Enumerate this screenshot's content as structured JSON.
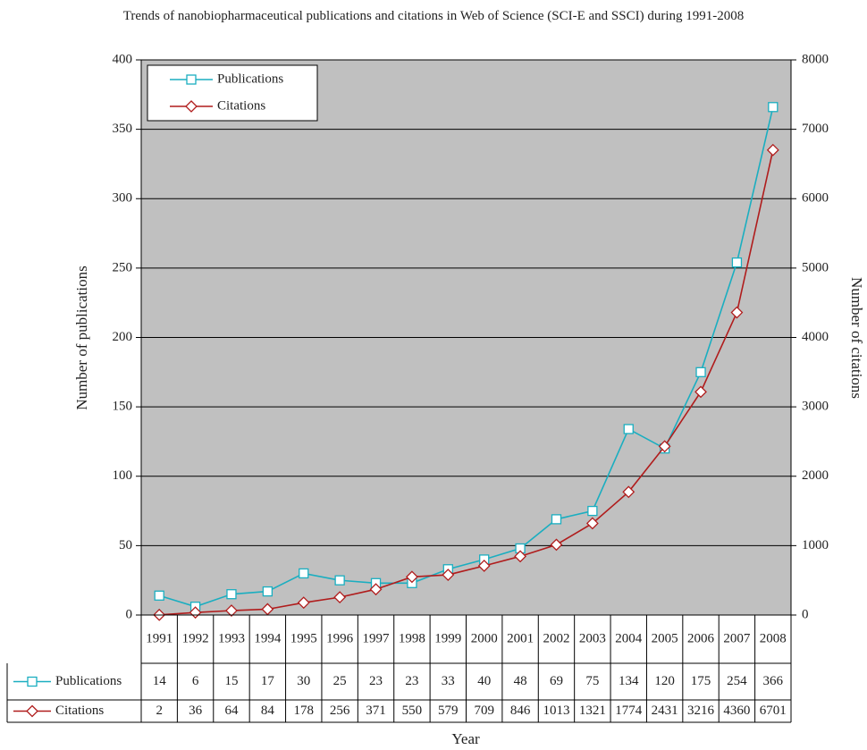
{
  "chart_data": {
    "type": "line",
    "title": "Trends of nanobiopharmaceutical publications and citations in Web of Science (SCI-E and SSCI) during 1991-2008",
    "x_label": "Year",
    "y_label": "Number of publications",
    "y2_label": "Number of citations",
    "categories": [
      "1991",
      "1992",
      "1993",
      "1994",
      "1995",
      "1996",
      "1997",
      "1998",
      "1999",
      "2000",
      "2001",
      "2002",
      "2003",
      "2004",
      "2005",
      "2006",
      "2007",
      "2008"
    ],
    "series": [
      {
        "name": "Publications",
        "color": "#1aaec0",
        "marker": "square",
        "values": [
          14,
          6,
          15,
          17,
          30,
          25,
          23,
          23,
          33,
          40,
          48,
          69,
          75,
          134,
          120,
          175,
          254,
          366
        ]
      },
      {
        "name": "Citations",
        "color": "#b01c1c",
        "marker": "diamond",
        "axis": "y2",
        "values": [
          2,
          36,
          64,
          84,
          178,
          256,
          371,
          550,
          579,
          709,
          846,
          1013,
          1321,
          1774,
          2431,
          3216,
          4360,
          6701
        ]
      }
    ],
    "ylim": [
      0,
      400
    ],
    "yticks": [
      0,
      50,
      100,
      150,
      200,
      250,
      300,
      350,
      400
    ],
    "y2lim": [
      0,
      8000
    ],
    "y2ticks": [
      0,
      1000,
      2000,
      3000,
      4000,
      5000,
      6000,
      7000,
      8000
    ],
    "grid": true,
    "legend": "upper left",
    "background": "#c0c0c0"
  }
}
